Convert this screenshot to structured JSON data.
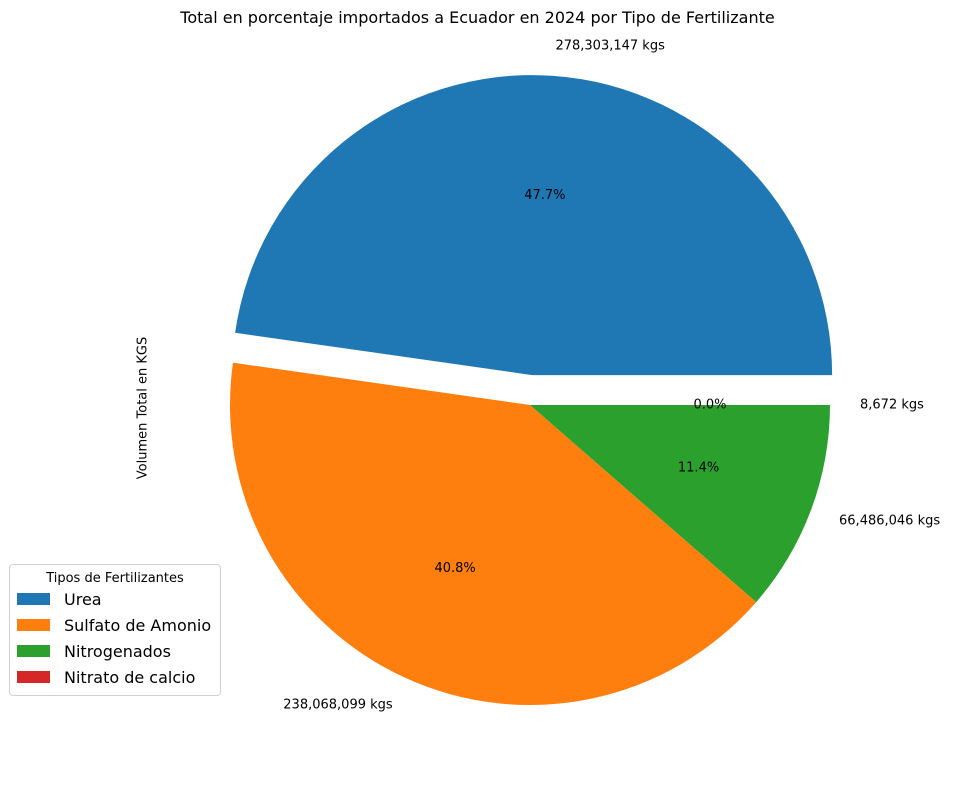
{
  "chart_data": {
    "type": "pie",
    "title": "Total en porcentaje importados a Ecuador en 2024 por Tipo de Fertilizante",
    "ylabel": "Volumen Total en KGS",
    "legend_title": "Tipos de Fertilizantes",
    "legend_position": "bottom-left",
    "slices": [
      {
        "name": "Urea",
        "value": 278303147,
        "value_label": "278,303,147 kgs",
        "pct_label": "47.7%",
        "color": "#1f77b4",
        "exploded": true
      },
      {
        "name": "Sulfato de Amonio",
        "value": 238068099,
        "value_label": "238,068,099 kgs",
        "pct_label": "40.8%",
        "color": "#ff7f0e",
        "exploded": false
      },
      {
        "name": "Nitrogenados",
        "value": 66486046,
        "value_label": "66,486,046 kgs",
        "pct_label": "11.4%",
        "color": "#2ca02c",
        "exploded": false
      },
      {
        "name": "Nitrato de calcio",
        "value": 8672,
        "value_label": "8,672 kgs",
        "pct_label": "0.0%",
        "color": "#d62728",
        "exploded": false
      }
    ]
  }
}
